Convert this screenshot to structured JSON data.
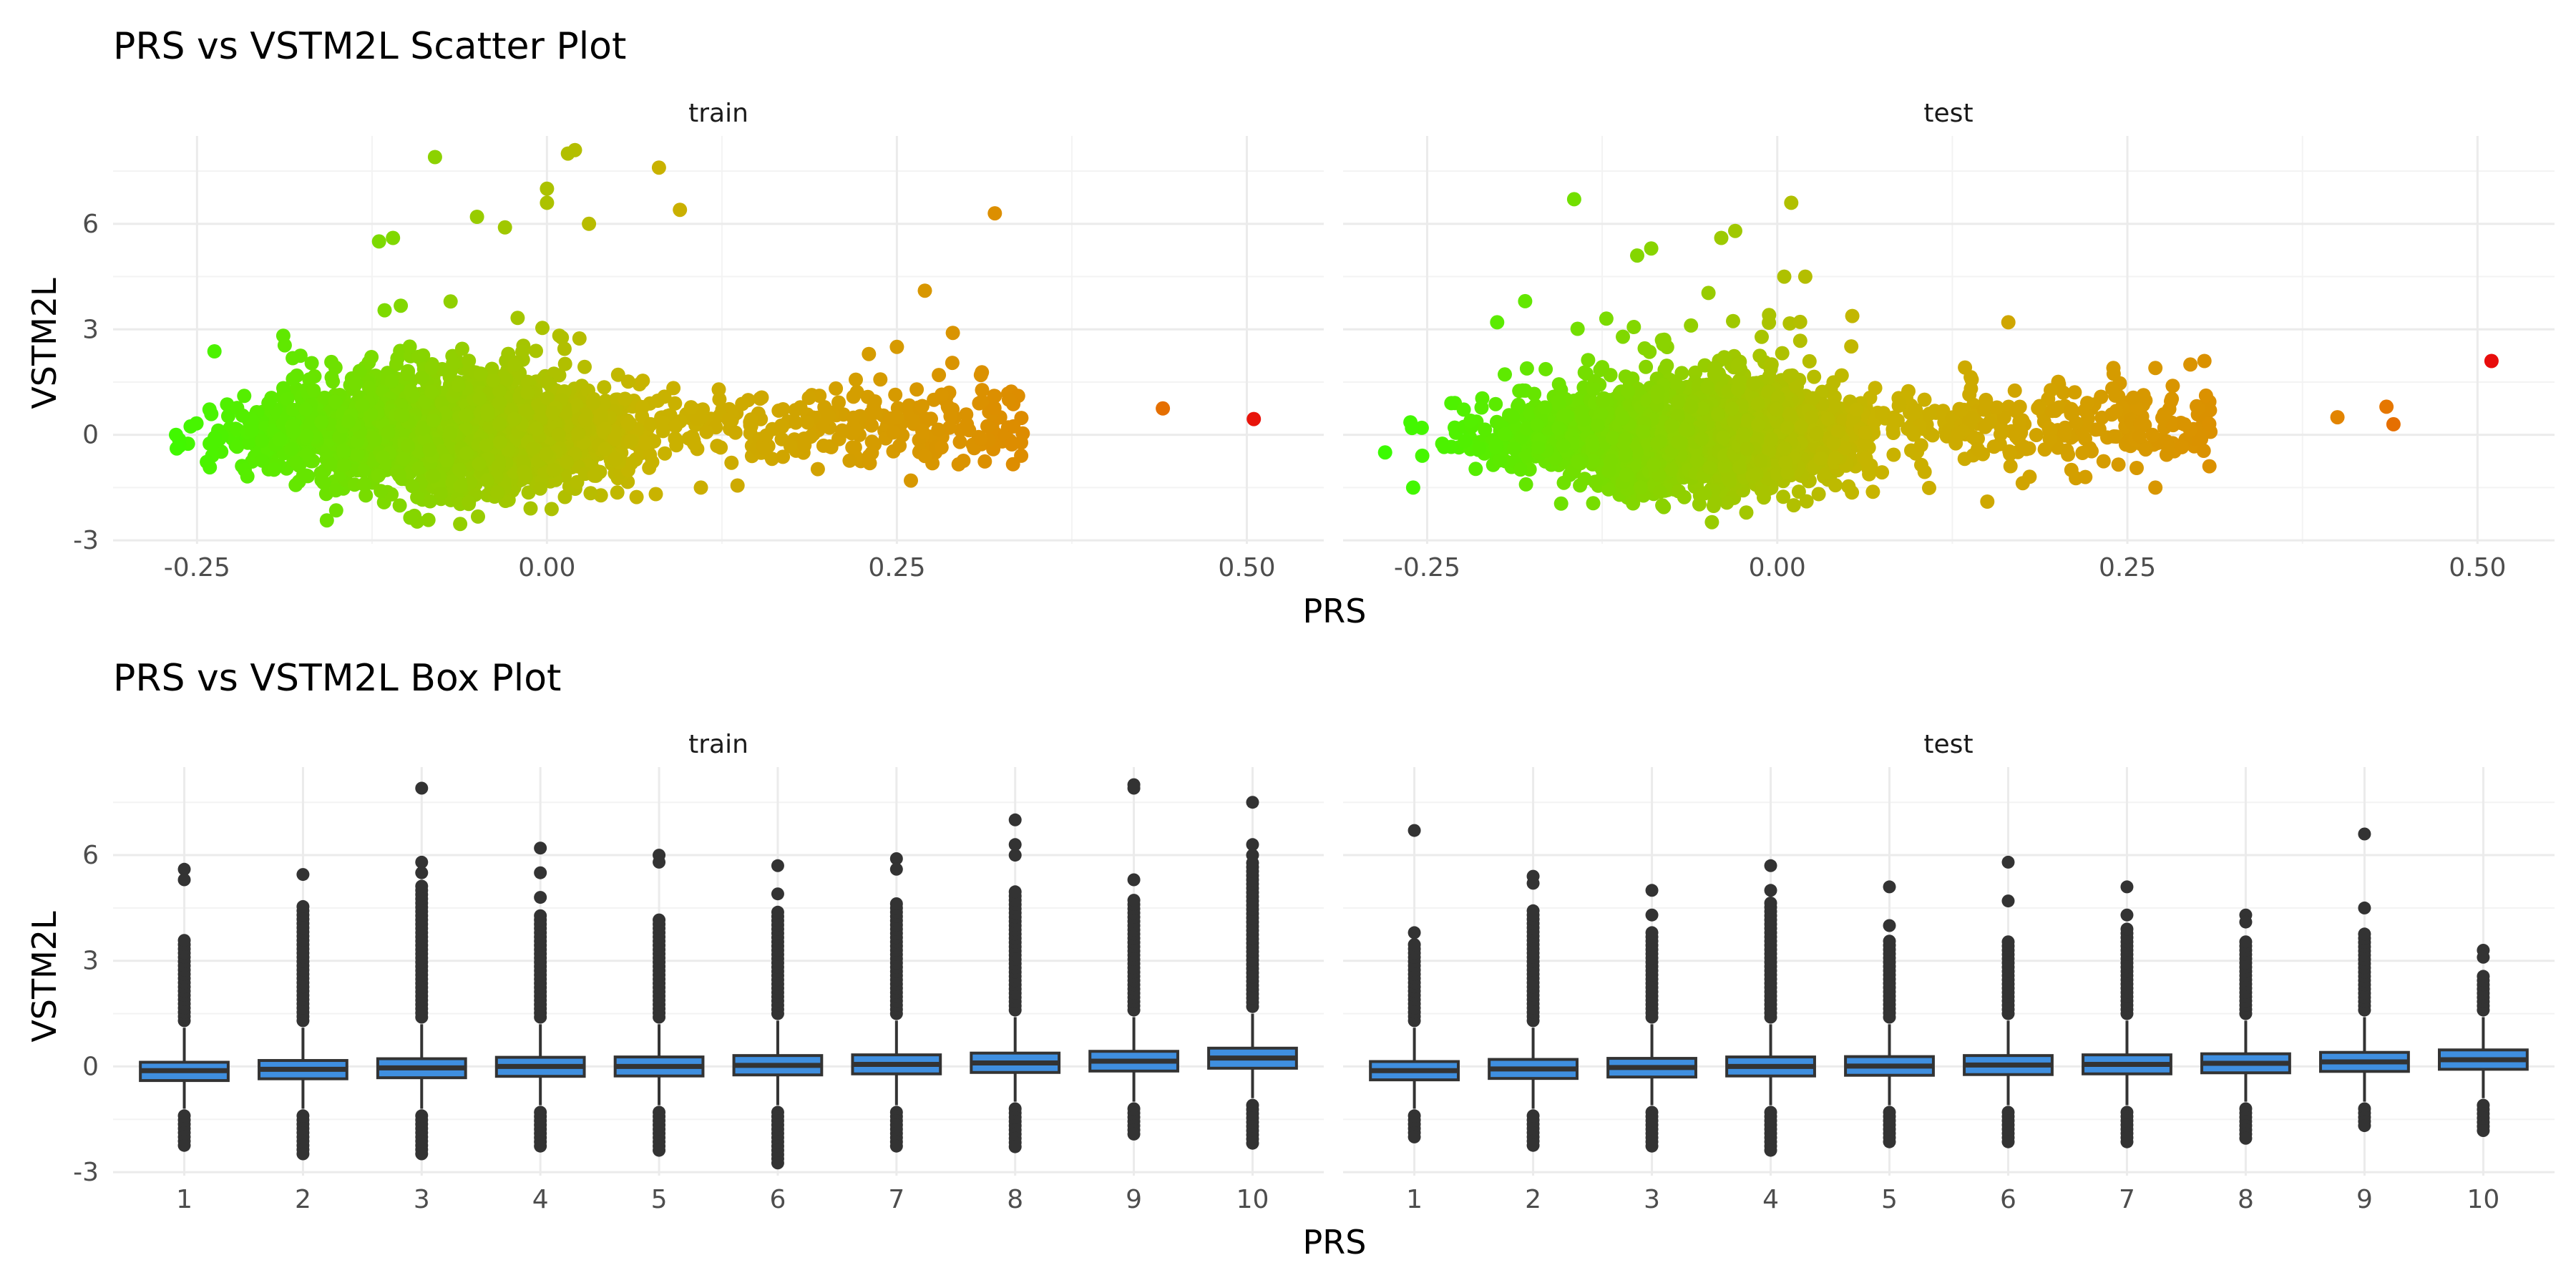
{
  "chart_data": [
    {
      "type": "scatter",
      "title": "PRS vs VSTM2L Scatter Plot",
      "xlabel": "PRS",
      "ylabel": "VSTM2L",
      "facets": [
        "train",
        "test"
      ],
      "xlim": [
        -0.31,
        0.555
      ],
      "ylim": [
        -3.1,
        8.5
      ],
      "x_ticks": [
        -0.25,
        0.0,
        0.25,
        0.5
      ],
      "x_tick_labels": [
        "-0.25",
        "0.00",
        "0.25",
        "0.50"
      ],
      "y_ticks": [
        -3,
        0,
        3,
        6
      ],
      "y_tick_labels": [
        "-3",
        "0",
        "3",
        "6"
      ],
      "grid": true,
      "legend": "none",
      "color_scale": {
        "low": "#33ff00",
        "mid": "#c8b400",
        "high": "#e8000d",
        "variable": "PRS"
      },
      "panels": [
        {
          "facet": "train",
          "bulk": {
            "x_range": [
              -0.265,
              0.08
            ],
            "center": -0.06,
            "y_sd": 0.95
          },
          "extra_points": [
            {
              "x": -0.08,
              "y": 7.9
            },
            {
              "x": 0.02,
              "y": 8.1
            },
            {
              "x": 0.015,
              "y": 8.0
            },
            {
              "x": 0.08,
              "y": 7.6
            },
            {
              "x": 0.095,
              "y": 6.4
            },
            {
              "x": -0.11,
              "y": 5.6
            },
            {
              "x": -0.12,
              "y": 5.5
            },
            {
              "x": -0.05,
              "y": 6.2
            },
            {
              "x": -0.03,
              "y": 5.9
            },
            {
              "x": -0.0,
              "y": 6.6
            },
            {
              "x": 0.03,
              "y": 6.0
            },
            {
              "x": 0.0,
              "y": 7.0
            },
            {
              "x": 0.32,
              "y": 6.3
            },
            {
              "x": 0.27,
              "y": 4.1
            },
            {
              "x": 0.29,
              "y": 2.9
            },
            {
              "x": 0.25,
              "y": 2.5
            },
            {
              "x": 0.23,
              "y": 2.3
            },
            {
              "x": 0.28,
              "y": 1.7
            },
            {
              "x": 0.31,
              "y": 1.7
            },
            {
              "x": 0.33,
              "y": 1.0
            },
            {
              "x": 0.32,
              "y": 1.1
            },
            {
              "x": 0.3,
              "y": 0.3
            },
            {
              "x": 0.31,
              "y": -0.1
            },
            {
              "x": 0.26,
              "y": -1.3
            },
            {
              "x": 0.27,
              "y": -0.6
            },
            {
              "x": 0.11,
              "y": -1.5
            },
            {
              "x": 0.44,
              "y": 0.75
            },
            {
              "x": 0.505,
              "y": 0.45
            },
            {
              "x": -0.265,
              "y": 0.0
            }
          ],
          "tail": {
            "x_range": [
              0.08,
              0.34
            ],
            "y_sd": 0.55
          }
        },
        {
          "facet": "test",
          "bulk": {
            "x_range": [
              -0.28,
              0.07
            ],
            "center": -0.05,
            "y_sd": 0.85
          },
          "extra_points": [
            {
              "x": -0.145,
              "y": 6.7
            },
            {
              "x": 0.01,
              "y": 6.6
            },
            {
              "x": -0.03,
              "y": 5.8
            },
            {
              "x": -0.04,
              "y": 5.6
            },
            {
              "x": -0.09,
              "y": 5.3
            },
            {
              "x": -0.1,
              "y": 5.1
            },
            {
              "x": -0.18,
              "y": 3.8
            },
            {
              "x": -0.2,
              "y": 3.2
            },
            {
              "x": 0.005,
              "y": 4.5
            },
            {
              "x": 0.02,
              "y": 4.5
            },
            {
              "x": 0.165,
              "y": 3.2
            },
            {
              "x": 0.24,
              "y": 1.9
            },
            {
              "x": 0.27,
              "y": 1.9
            },
            {
              "x": 0.295,
              "y": 2.0
            },
            {
              "x": 0.305,
              "y": 2.1
            },
            {
              "x": 0.21,
              "y": -1.0
            },
            {
              "x": 0.22,
              "y": -1.2
            },
            {
              "x": 0.27,
              "y": -1.5
            },
            {
              "x": 0.15,
              "y": -1.9
            },
            {
              "x": 0.4,
              "y": 0.5
            },
            {
              "x": 0.435,
              "y": 0.8
            },
            {
              "x": 0.44,
              "y": 0.3
            },
            {
              "x": 0.51,
              "y": 2.1
            },
            {
              "x": -0.28,
              "y": -0.5
            },
            {
              "x": -0.26,
              "y": -1.5
            }
          ],
          "tail": {
            "x_range": [
              0.07,
              0.31
            ],
            "y_sd": 0.6
          }
        }
      ]
    },
    {
      "type": "box",
      "title": "PRS vs VSTM2L Box Plot",
      "xlabel": "PRS",
      "ylabel": "VSTM2L",
      "facets": [
        "train",
        "test"
      ],
      "categories": [
        "1",
        "2",
        "3",
        "4",
        "5",
        "6",
        "7",
        "8",
        "9",
        "10"
      ],
      "ylim": [
        -3.1,
        8.5
      ],
      "y_ticks": [
        -3,
        0,
        3,
        6
      ],
      "y_tick_labels": [
        "-3",
        "0",
        "3",
        "6"
      ],
      "box_fill": "#3f8fe0",
      "box_stroke": "#333333",
      "outlier_color": "#333333",
      "grid": true,
      "panels": [
        {
          "facet": "train",
          "boxes": [
            {
              "q1": -0.4,
              "median": -0.12,
              "q3": 0.12,
              "whisker_low": -1.2,
              "whisker_high": 1.1,
              "outliers_high": [
                5.6,
                5.3
              ],
              "outlier_max_dense": 3.6,
              "outlier_min": -2.3
            },
            {
              "q1": -0.35,
              "median": -0.08,
              "q3": 0.17,
              "whisker_low": -1.2,
              "whisker_high": 1.1,
              "outliers_high": [
                5.45
              ],
              "outlier_max_dense": 4.6,
              "outlier_min": -2.5
            },
            {
              "q1": -0.32,
              "median": -0.04,
              "q3": 0.22,
              "whisker_low": -1.2,
              "whisker_high": 1.2,
              "outliers_high": [
                7.9,
                5.8,
                5.5
              ],
              "outlier_max_dense": 5.2,
              "outlier_min": -2.6
            },
            {
              "q1": -0.28,
              "median": 0.0,
              "q3": 0.26,
              "whisker_low": -1.1,
              "whisker_high": 1.2,
              "outliers_high": [
                6.2,
                5.5,
                4.8
              ],
              "outlier_max_dense": 4.4,
              "outlier_min": -2.3
            },
            {
              "q1": -0.27,
              "median": 0.0,
              "q3": 0.27,
              "whisker_low": -1.1,
              "whisker_high": 1.2,
              "outliers_high": [
                6.0,
                5.8
              ],
              "outlier_max_dense": 4.2,
              "outlier_min": -2.4
            },
            {
              "q1": -0.24,
              "median": 0.03,
              "q3": 0.31,
              "whisker_low": -1.1,
              "whisker_high": 1.3,
              "outliers_high": [
                5.7,
                4.9
              ],
              "outlier_max_dense": 4.5,
              "outlier_min": -2.75
            },
            {
              "q1": -0.21,
              "median": 0.06,
              "q3": 0.33,
              "whisker_low": -1.1,
              "whisker_high": 1.3,
              "outliers_high": [
                5.9,
                5.6
              ],
              "outlier_max_dense": 4.7,
              "outlier_min": -2.3
            },
            {
              "q1": -0.17,
              "median": 0.1,
              "q3": 0.38,
              "whisker_low": -1.0,
              "whisker_high": 1.4,
              "outliers_high": [
                7.0,
                6.3,
                6.0
              ],
              "outlier_max_dense": 5.0,
              "outlier_min": -2.3
            },
            {
              "q1": -0.13,
              "median": 0.15,
              "q3": 0.43,
              "whisker_low": -1.0,
              "whisker_high": 1.4,
              "outliers_high": [
                8.0,
                7.9,
                5.3
              ],
              "outlier_max_dense": 4.8,
              "outlier_min": -2.0
            },
            {
              "q1": -0.05,
              "median": 0.24,
              "q3": 0.52,
              "whisker_low": -0.9,
              "whisker_high": 1.5,
              "outliers_high": [
                7.5,
                6.3,
                6.0
              ],
              "outlier_max_dense": 5.8,
              "outlier_min": -2.2
            }
          ]
        },
        {
          "facet": "test",
          "boxes": [
            {
              "q1": -0.38,
              "median": -0.12,
              "q3": 0.14,
              "whisker_low": -1.2,
              "whisker_high": 1.1,
              "outliers_high": [
                6.7,
                3.8
              ],
              "outlier_max_dense": 3.5,
              "outlier_min": -2.1
            },
            {
              "q1": -0.34,
              "median": -0.07,
              "q3": 0.2,
              "whisker_low": -1.2,
              "whisker_high": 1.1,
              "outliers_high": [
                5.4,
                5.2
              ],
              "outlier_max_dense": 4.5,
              "outlier_min": -2.3
            },
            {
              "q1": -0.3,
              "median": -0.03,
              "q3": 0.23,
              "whisker_low": -1.1,
              "whisker_high": 1.2,
              "outliers_high": [
                5.0,
                4.3
              ],
              "outlier_max_dense": 3.9,
              "outlier_min": -2.3
            },
            {
              "q1": -0.27,
              "median": 0.0,
              "q3": 0.27,
              "whisker_low": -1.1,
              "whisker_high": 1.2,
              "outliers_high": [
                5.7,
                5.0
              ],
              "outlier_max_dense": 4.7,
              "outlier_min": -2.4
            },
            {
              "q1": -0.25,
              "median": 0.01,
              "q3": 0.28,
              "whisker_low": -1.1,
              "whisker_high": 1.2,
              "outliers_high": [
                5.1,
                4.0
              ],
              "outlier_max_dense": 3.6,
              "outlier_min": -2.2
            },
            {
              "q1": -0.23,
              "median": 0.04,
              "q3": 0.31,
              "whisker_low": -1.1,
              "whisker_high": 1.3,
              "outliers_high": [
                5.8,
                4.7
              ],
              "outlier_max_dense": 3.6,
              "outlier_min": -2.2
            },
            {
              "q1": -0.21,
              "median": 0.06,
              "q3": 0.33,
              "whisker_low": -1.1,
              "whisker_high": 1.3,
              "outliers_high": [
                5.1,
                4.3
              ],
              "outlier_max_dense": 4.0,
              "outlier_min": -2.2
            },
            {
              "q1": -0.18,
              "median": 0.09,
              "q3": 0.36,
              "whisker_low": -1.0,
              "whisker_high": 1.3,
              "outliers_high": [
                4.3,
                4.1
              ],
              "outlier_max_dense": 3.6,
              "outlier_min": -2.1
            },
            {
              "q1": -0.14,
              "median": 0.13,
              "q3": 0.4,
              "whisker_low": -1.0,
              "whisker_high": 1.4,
              "outliers_high": [
                6.6,
                4.5
              ],
              "outlier_max_dense": 3.8,
              "outlier_min": -1.7
            },
            {
              "q1": -0.08,
              "median": 0.19,
              "q3": 0.47,
              "whisker_low": -0.9,
              "whisker_high": 1.4,
              "outliers_high": [
                3.3,
                3.1
              ],
              "outlier_max_dense": 2.6,
              "outlier_min": -1.9
            }
          ]
        }
      ]
    }
  ]
}
